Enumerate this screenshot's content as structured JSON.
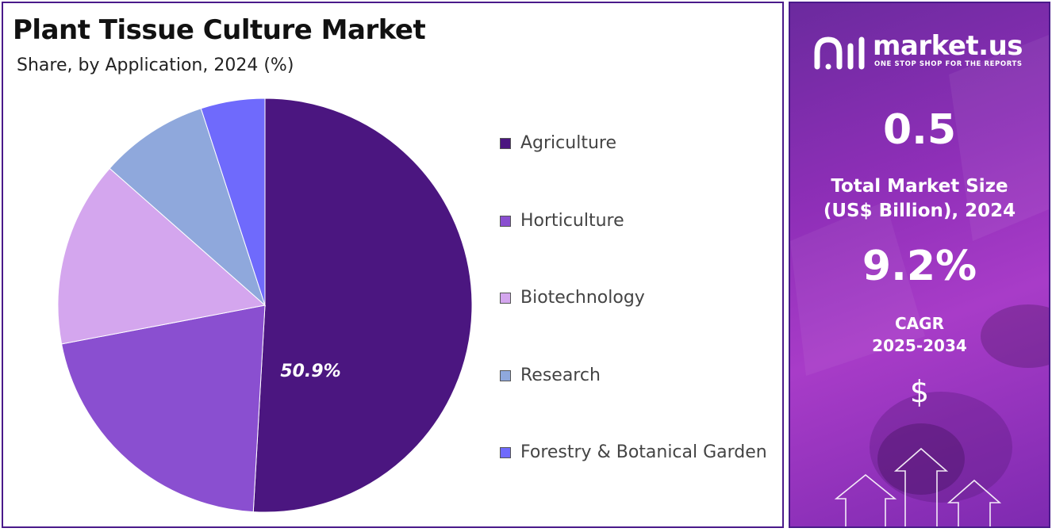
{
  "header": {
    "title": "Plant Tissue Culture Market",
    "subtitle": "Share, by Application, 2024 (%)"
  },
  "chart_data": {
    "type": "pie",
    "title": "Plant Tissue Culture Market",
    "subtitle": "Share, by Application, 2024 (%)",
    "categories": [
      "Agriculture",
      "Horticulture",
      "Biotechnology",
      "Research",
      "Forestry & Botanical Garden"
    ],
    "values": [
      50.9,
      21.1,
      14.5,
      8.5,
      5.0
    ],
    "colors": [
      "#4b1680",
      "#8a4fd0",
      "#d4a6ee",
      "#8fa8dc",
      "#6f6afc"
    ],
    "data_labels": [
      "50.9%",
      "",
      "",
      "",
      ""
    ],
    "legend_position": "right"
  },
  "sidebar": {
    "brand": "market.us",
    "tagline": "ONE STOP SHOP FOR THE REPORTS",
    "market_size_value": "0.5",
    "market_size_label_line1": "Total Market Size",
    "market_size_label_line2": "(US$ Billion), 2024",
    "cagr_value": "9.2%",
    "cagr_label_line1": "CAGR",
    "cagr_label_line2": "2025-2034",
    "currency_symbol": "$"
  },
  "icons": [
    "market-us-logo-icon",
    "dollar-icon",
    "up-arrow-icon"
  ]
}
